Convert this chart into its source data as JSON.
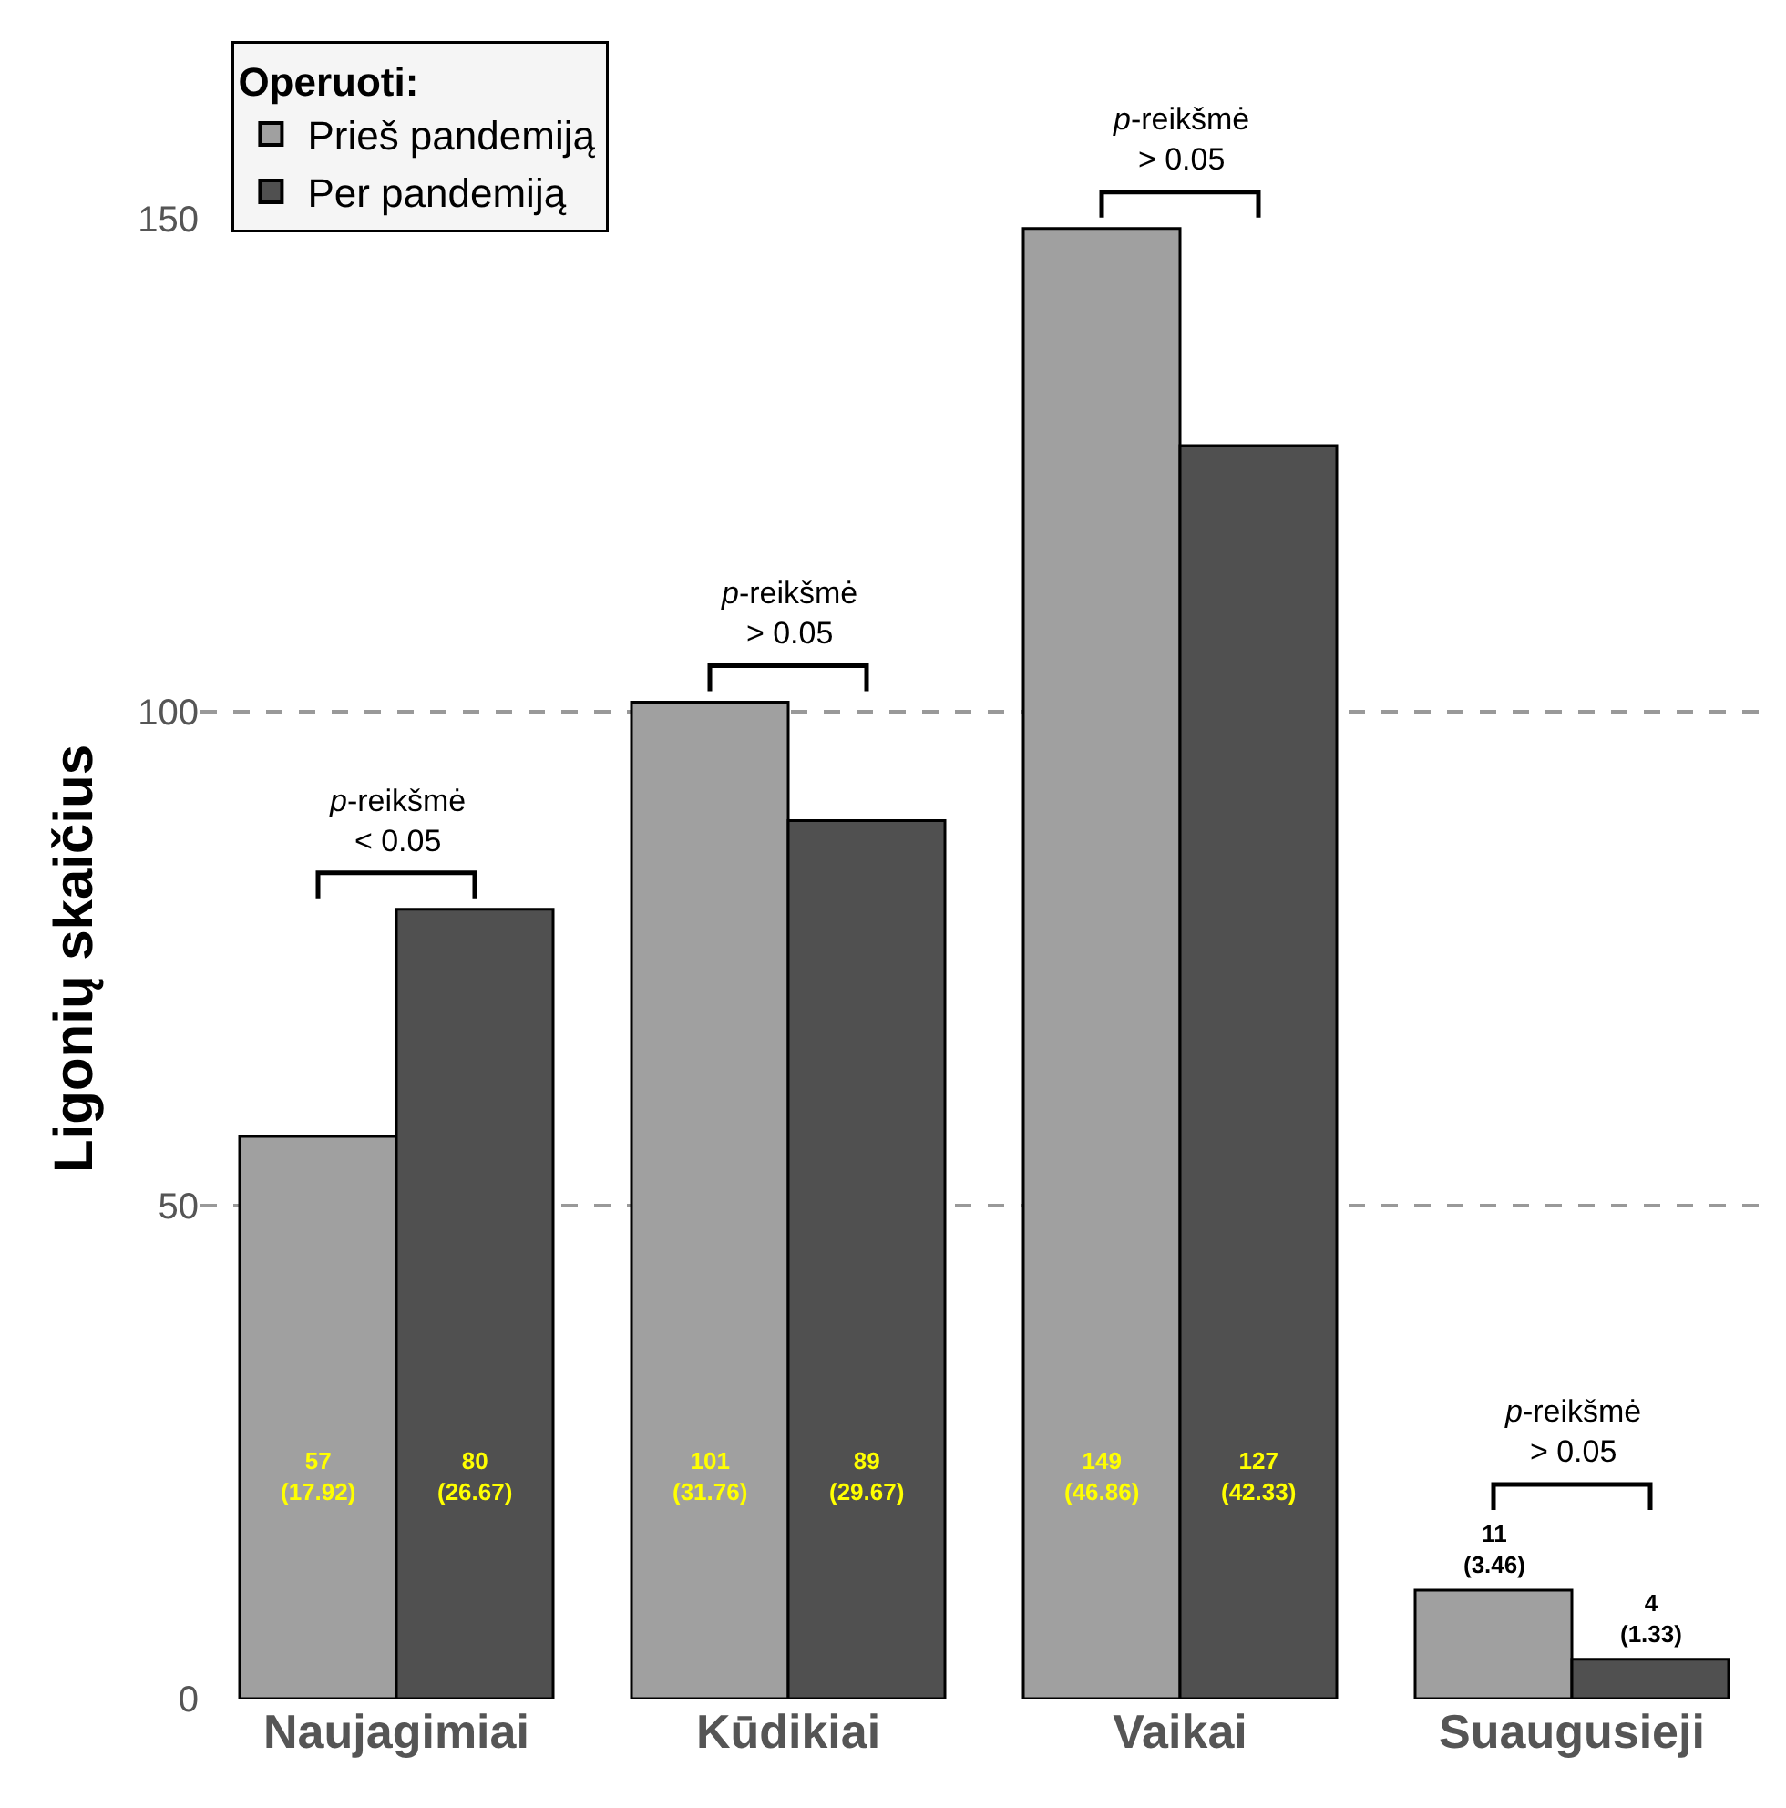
{
  "chart_data": {
    "type": "bar",
    "ylabel": "Ligonių skaičius",
    "legend_title": "Operuoti:",
    "legend": "top left",
    "grid": "y",
    "categories": [
      "Naujagimiai",
      "Kūdikiai",
      "Vaikai",
      "Suaugusieji"
    ],
    "series": [
      {
        "name": "Prieš pandemiją",
        "color": "#a0a0a0",
        "values": [
          57,
          101,
          149,
          11
        ],
        "value_labels": [
          "57\n(17.92)",
          "101\n(31.76)",
          "149\n(46.86)",
          "11\n(3.46)"
        ]
      },
      {
        "name": "Per pandemiją",
        "color": "#505050",
        "values": [
          80,
          89,
          127,
          4
        ],
        "value_labels": [
          "80\n(26.67)",
          "89\n(29.67)",
          "127\n(42.33)",
          "4\n(1.33)"
        ]
      }
    ],
    "ylim": [
      0,
      150
    ],
    "yticks": [
      0,
      50,
      100,
      150
    ],
    "annotations": [
      "p-reikšmė\n< 0.05",
      "p-reikšmė\n> 0.05",
      "p-reikšmė\n> 0.05",
      "p-reikšmė\n> 0.05"
    ]
  }
}
